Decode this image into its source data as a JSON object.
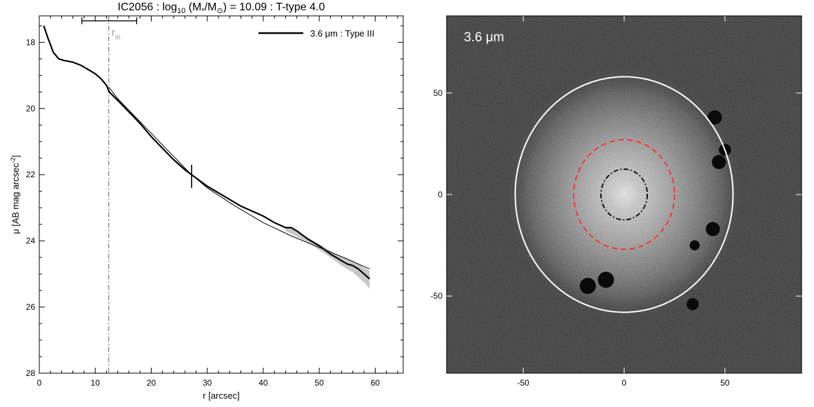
{
  "chart_data": [
    {
      "type": "line",
      "title_parts": {
        "name": "IC2056 : log",
        "log_sub": "10",
        "mass": " (M",
        "star_sub": "*",
        "slash": "/M",
        "sun_sub": "⊙",
        "rest": ") = 10.09 : T-type 4.0"
      },
      "xlabel": "r [arcsec]",
      "ylabel_parts": {
        "main": "μ [AB mag arcsec",
        "sup": "-2",
        "close": "]"
      },
      "xlim": [
        0,
        65
      ],
      "ylim": [
        28,
        17.2
      ],
      "y_inverted": true,
      "x_ticks": [
        0,
        10,
        20,
        30,
        40,
        50,
        60
      ],
      "y_ticks": [
        18,
        20,
        22,
        24,
        26,
        28
      ],
      "grid": false,
      "legend": {
        "position": "top-right",
        "label": "3.6 μm : Type III"
      },
      "annotations": {
        "r_in_label": "r",
        "r_in_sub": "in",
        "r_in_x": 12.4,
        "r_in_errorbar": [
          7.6,
          17.4
        ],
        "r_in_errorbar_y": 17.35,
        "break_marker_x": 27.2,
        "break_marker_y": [
          21.7,
          22.4
        ]
      },
      "series": [
        {
          "name": "3.6 μm : Type III",
          "x": [
            0.8,
            1.5,
            2.5,
            3.5,
            4.5,
            6,
            7.5,
            9,
            10,
            11,
            12,
            12.5,
            14,
            16,
            18,
            20,
            22,
            24,
            26,
            27.2,
            28,
            30,
            32,
            34,
            36,
            38,
            40,
            42,
            44,
            45,
            46,
            48,
            50,
            52,
            53,
            54,
            55,
            56,
            57,
            58,
            59
          ],
          "y": [
            17.5,
            17.85,
            18.3,
            18.5,
            18.55,
            18.6,
            18.7,
            18.85,
            18.95,
            19.1,
            19.3,
            19.5,
            19.75,
            20.1,
            20.45,
            20.85,
            21.2,
            21.55,
            21.85,
            22.0,
            22.1,
            22.35,
            22.55,
            22.75,
            22.95,
            23.1,
            23.25,
            23.45,
            23.6,
            23.6,
            23.7,
            23.95,
            24.15,
            24.4,
            24.5,
            24.6,
            24.7,
            24.75,
            24.85,
            25.0,
            25.15
          ]
        },
        {
          "name": "",
          "x": [
            12.4,
            14,
            16,
            18,
            20,
            22,
            24,
            26,
            27.2
          ],
          "y": [
            19.35,
            19.7,
            20.05,
            20.4,
            20.75,
            21.1,
            21.45,
            21.8,
            22.0
          ]
        },
        {
          "name": "",
          "x": [
            27.2,
            30,
            35,
            40,
            45,
            50,
            55,
            59
          ],
          "y": [
            22.0,
            22.4,
            22.95,
            23.45,
            23.85,
            24.2,
            24.55,
            24.85
          ]
        }
      ],
      "error_band": {
        "x": [
          44,
          48,
          52,
          54,
          56,
          57,
          58,
          59
        ],
        "lower": [
          23.55,
          23.9,
          24.3,
          24.5,
          24.6,
          24.7,
          24.8,
          24.9
        ],
        "upper": [
          23.7,
          24.05,
          24.5,
          24.75,
          24.95,
          25.1,
          25.25,
          25.45
        ]
      }
    },
    {
      "type": "image",
      "panel_label": "3.6 μm",
      "xlim": [
        -88,
        88
      ],
      "ylim": [
        -88,
        88
      ],
      "x_ticks": [
        -50,
        0,
        50
      ],
      "y_ticks": [
        -50,
        0,
        50
      ],
      "x_tick_labels": [
        "-50",
        "0",
        "50"
      ],
      "y_tick_labels": [
        "-50",
        "0",
        "50"
      ],
      "ellipses": [
        {
          "name": "outer",
          "cx": 0,
          "cy": 0,
          "rx": 54,
          "ry": 58,
          "color": "#ffffff",
          "style": "solid"
        },
        {
          "name": "break",
          "cx": 0,
          "cy": 0,
          "rx": 25,
          "ry": 27,
          "color": "#ff2a2a",
          "style": "dashed"
        },
        {
          "name": "inner",
          "cx": 0,
          "cy": 0,
          "rx": 11.5,
          "ry": 12.5,
          "color": "#000000",
          "style": "dashdot"
        }
      ],
      "masked_sources": [
        [
          45,
          38,
          3.5
        ],
        [
          47,
          16,
          3.5
        ],
        [
          44,
          -17,
          3.5
        ],
        [
          35,
          -25,
          2.5
        ],
        [
          -18,
          -45,
          4
        ],
        [
          -9,
          -42,
          4
        ],
        [
          34,
          -54,
          3
        ],
        [
          50,
          22,
          3
        ]
      ],
      "colors": {
        "background": "#111111",
        "galaxy_core": "#f0f0f0"
      }
    }
  ]
}
